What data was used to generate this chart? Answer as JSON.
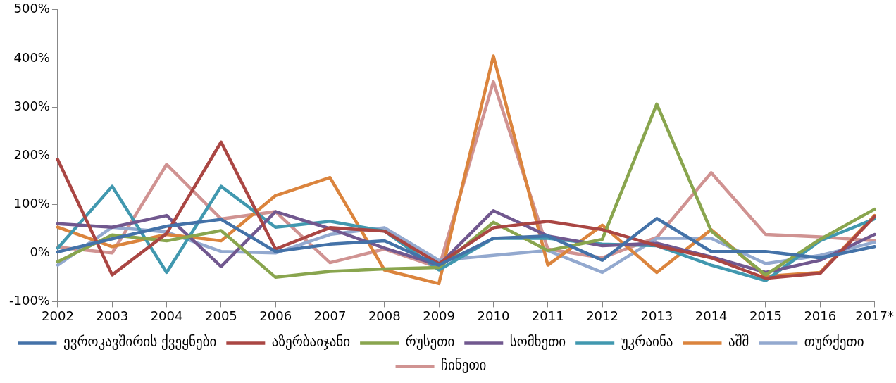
{
  "chart_data": {
    "type": "line",
    "categories": [
      "2002",
      "2003",
      "2004",
      "2005",
      "2006",
      "2007",
      "2008",
      "2009",
      "2010",
      "2011",
      "2012",
      "2013",
      "2014",
      "2015",
      "2016",
      "2017*"
    ],
    "series": [
      {
        "name": "ევროკავშირის ქვეყნები",
        "color": "#4472a8",
        "values": [
          2,
          29,
          55,
          69,
          3,
          18,
          25,
          -25,
          30,
          35,
          -15,
          71,
          3,
          3,
          -10,
          13
        ]
      },
      {
        "name": "აზერბაიჯანი",
        "color": "#aa4643",
        "values": [
          192,
          -45,
          40,
          228,
          8,
          52,
          45,
          -22,
          52,
          65,
          48,
          15,
          -10,
          -52,
          -42,
          75
        ]
      },
      {
        "name": "რუსეთი",
        "color": "#89a54e",
        "values": [
          -18,
          37,
          25,
          46,
          -50,
          -38,
          -33,
          -30,
          63,
          5,
          28,
          306,
          45,
          -45,
          28,
          90
        ]
      },
      {
        "name": "სომხეთი",
        "color": "#71588f",
        "values": [
          60,
          53,
          77,
          -28,
          85,
          50,
          10,
          -25,
          87,
          35,
          15,
          20,
          -8,
          -40,
          -15,
          38
        ]
      },
      {
        "name": "უკრაინა",
        "color": "#4198af",
        "values": [
          10,
          137,
          -40,
          137,
          53,
          65,
          45,
          -35,
          30,
          30,
          18,
          15,
          -25,
          -57,
          25,
          70
        ]
      },
      {
        "name": "აშშ",
        "color": "#db843d",
        "values": [
          53,
          13,
          38,
          25,
          118,
          155,
          -35,
          -63,
          405,
          -25,
          57,
          -40,
          48,
          -48,
          -40,
          77
        ]
      },
      {
        "name": "თურქეთი",
        "color": "#93a9cf",
        "values": [
          -25,
          53,
          43,
          3,
          0,
          38,
          52,
          -15,
          -5,
          5,
          -40,
          30,
          30,
          -22,
          -5,
          22
        ]
      },
      {
        "name": "ჩინეთი",
        "color": "#d09392",
        "values": [
          12,
          0,
          182,
          70,
          85,
          -20,
          8,
          -30,
          352,
          8,
          -10,
          32,
          165,
          38,
          33,
          25
        ]
      }
    ],
    "ylim": [
      -100,
      500
    ],
    "yticks": [
      {
        "value": -100,
        "label": "-100%"
      },
      {
        "value": 0,
        "label": "0%"
      },
      {
        "value": 100,
        "label": "100%"
      },
      {
        "value": 200,
        "label": "200%"
      },
      {
        "value": 300,
        "label": "300%"
      },
      {
        "value": 400,
        "label": "400%"
      },
      {
        "value": 500,
        "label": "500%"
      }
    ],
    "grid": false,
    "legend": "bottom",
    "marker": "none",
    "line_style": "solid"
  }
}
